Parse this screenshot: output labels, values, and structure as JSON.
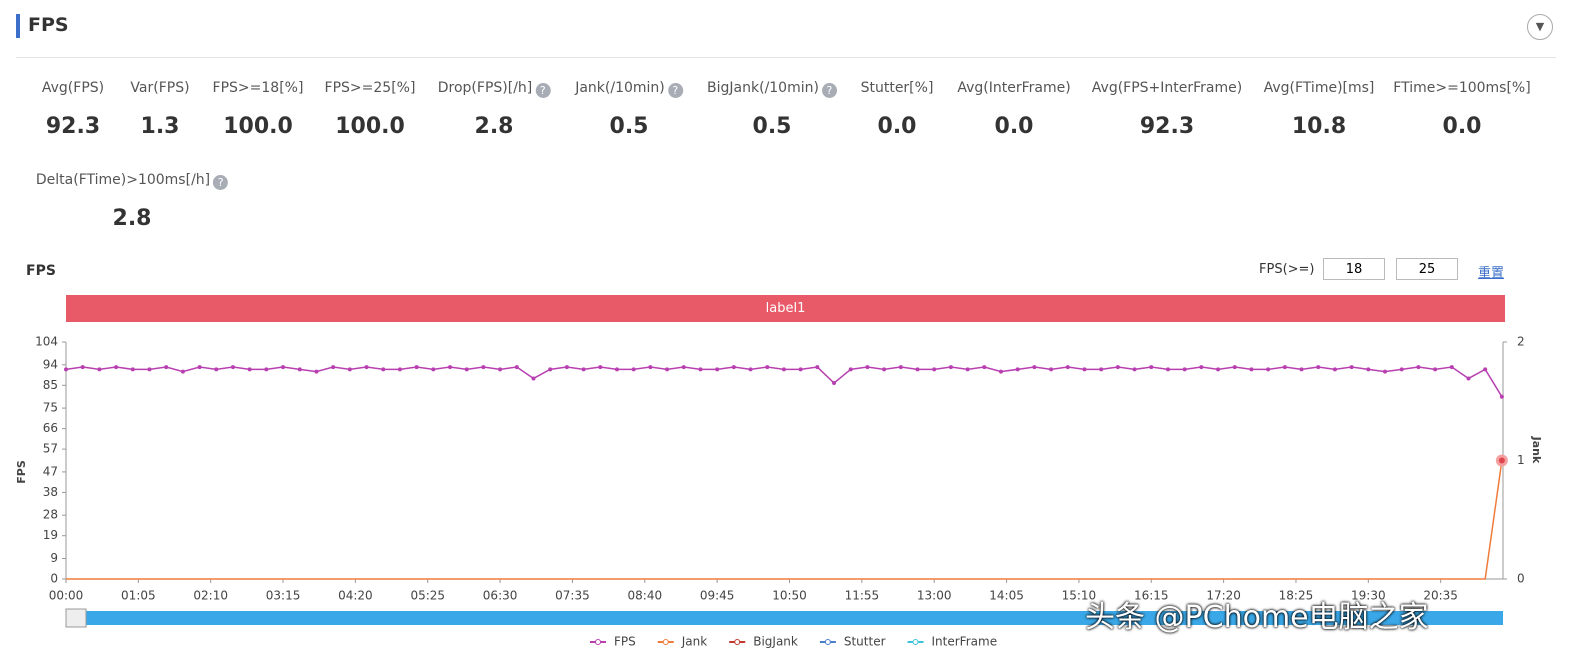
{
  "header": {
    "title": "FPS"
  },
  "metrics": [
    {
      "label": "Avg(FPS)",
      "value": "92.3",
      "help": false
    },
    {
      "label": "Var(FPS)",
      "value": "1.3",
      "help": false
    },
    {
      "label": "FPS>=18[%]",
      "value": "100.0",
      "help": false
    },
    {
      "label": "FPS>=25[%]",
      "value": "100.0",
      "help": false
    },
    {
      "label": "Drop(FPS)[/h]",
      "value": "2.8",
      "help": true
    },
    {
      "label": "Jank(/10min)",
      "value": "0.5",
      "help": true
    },
    {
      "label": "BigJank(/10min)",
      "value": "0.5",
      "help": true
    },
    {
      "label": "Stutter[%]",
      "value": "0.0",
      "help": false
    },
    {
      "label": "Avg(InterFrame)",
      "value": "0.0",
      "help": false
    },
    {
      "label": "Avg(FPS+InterFrame)",
      "value": "92.3",
      "help": false
    },
    {
      "label": "Avg(FTime)[ms]",
      "value": "10.8",
      "help": false
    },
    {
      "label": "FTime>=100ms[%]",
      "value": "0.0",
      "help": false
    },
    {
      "label": "Delta(FTime)>100ms[/h]",
      "value": "2.8",
      "help": true
    }
  ],
  "controls": {
    "label": "FPS(>=)",
    "inputs": [
      18,
      25
    ],
    "reset": "重置"
  },
  "watermark": "头条 @PChome电脑之家",
  "chart_data": {
    "type": "line",
    "title": "FPS",
    "band_label": "label1",
    "ylabel": "FPS",
    "y2label": "Jank",
    "x": [
      0,
      15,
      30,
      45,
      60,
      75,
      90,
      105,
      120,
      135,
      150,
      165,
      180,
      195,
      210,
      225,
      240,
      255,
      270,
      285,
      300,
      315,
      330,
      345,
      360,
      375,
      390,
      405,
      420,
      435,
      450,
      465,
      480,
      495,
      510,
      525,
      540,
      555,
      570,
      585,
      600,
      615,
      630,
      645,
      660,
      675,
      690,
      705,
      720,
      735,
      750,
      765,
      780,
      795,
      810,
      825,
      840,
      855,
      870,
      885,
      900,
      915,
      930,
      945,
      960,
      975,
      990,
      1005,
      1020,
      1035,
      1050,
      1065,
      1080,
      1095,
      1110,
      1125,
      1140,
      1155,
      1170,
      1185,
      1200,
      1215,
      1230,
      1245,
      1260,
      1275,
      1290
    ],
    "series": [
      {
        "name": "FPS",
        "color": "#b83fb0",
        "values": [
          92,
          93,
          92,
          93,
          92,
          92,
          93,
          91,
          93,
          92,
          93,
          92,
          92,
          93,
          92,
          91,
          93,
          92,
          93,
          92,
          92,
          93,
          92,
          93,
          92,
          93,
          92,
          93,
          88,
          92,
          93,
          92,
          93,
          92,
          92,
          93,
          92,
          93,
          92,
          92,
          93,
          92,
          93,
          92,
          92,
          93,
          86,
          92,
          93,
          92,
          93,
          92,
          92,
          93,
          92,
          93,
          91,
          92,
          93,
          92,
          93,
          92,
          92,
          93,
          92,
          93,
          92,
          92,
          93,
          92,
          93,
          92,
          92,
          93,
          92,
          93,
          92,
          93,
          92,
          91,
          92,
          93,
          92,
          93,
          88,
          92,
          80
        ]
      },
      {
        "name": "Jank",
        "color": "#f07c3c",
        "axis": "y2",
        "values": [
          0,
          0,
          0,
          0,
          0,
          0,
          0,
          0,
          0,
          0,
          0,
          0,
          0,
          0,
          0,
          0,
          0,
          0,
          0,
          0,
          0,
          0,
          0,
          0,
          0,
          0,
          0,
          0,
          0,
          0,
          0,
          0,
          0,
          0,
          0,
          0,
          0,
          0,
          0,
          0,
          0,
          0,
          0,
          0,
          0,
          0,
          0,
          0,
          0,
          0,
          0,
          0,
          0,
          0,
          0,
          0,
          0,
          0,
          0,
          0,
          0,
          0,
          0,
          0,
          0,
          0,
          0,
          0,
          0,
          0,
          0,
          0,
          0,
          0,
          0,
          0,
          0,
          0,
          0,
          0,
          0,
          0,
          0,
          0,
          0,
          0,
          1
        ]
      },
      {
        "name": "BigJank",
        "color": "#c0392b"
      },
      {
        "name": "Stutter",
        "color": "#4a7fd0"
      },
      {
        "name": "InterFrame",
        "color": "#3fc3d9"
      }
    ],
    "xlim": [
      0,
      1291
    ],
    "xticks": [
      {
        "value": 0,
        "label": "00:00"
      },
      {
        "value": 65,
        "label": "01:05"
      },
      {
        "value": 130,
        "label": "02:10"
      },
      {
        "value": 195,
        "label": "03:15"
      },
      {
        "value": 260,
        "label": "04:20"
      },
      {
        "value": 325,
        "label": "05:25"
      },
      {
        "value": 390,
        "label": "06:30"
      },
      {
        "value": 455,
        "label": "07:35"
      },
      {
        "value": 520,
        "label": "08:40"
      },
      {
        "value": 585,
        "label": "09:45"
      },
      {
        "value": 650,
        "label": "10:50"
      },
      {
        "value": 715,
        "label": "11:55"
      },
      {
        "value": 780,
        "label": "13:00"
      },
      {
        "value": 845,
        "label": "14:05"
      },
      {
        "value": 910,
        "label": "15:10"
      },
      {
        "value": 975,
        "label": "16:15"
      },
      {
        "value": 1040,
        "label": "17:20"
      },
      {
        "value": 1105,
        "label": "18:25"
      },
      {
        "value": 1170,
        "label": "19:30"
      },
      {
        "value": 1235,
        "label": "20:35"
      }
    ],
    "ylim": [
      0,
      104
    ],
    "yticks": [
      0,
      9,
      19,
      28,
      38,
      47,
      57,
      66,
      75,
      85,
      94,
      104
    ],
    "y2lim": [
      0,
      2
    ],
    "y2ticks": [
      0,
      1,
      2
    ]
  }
}
